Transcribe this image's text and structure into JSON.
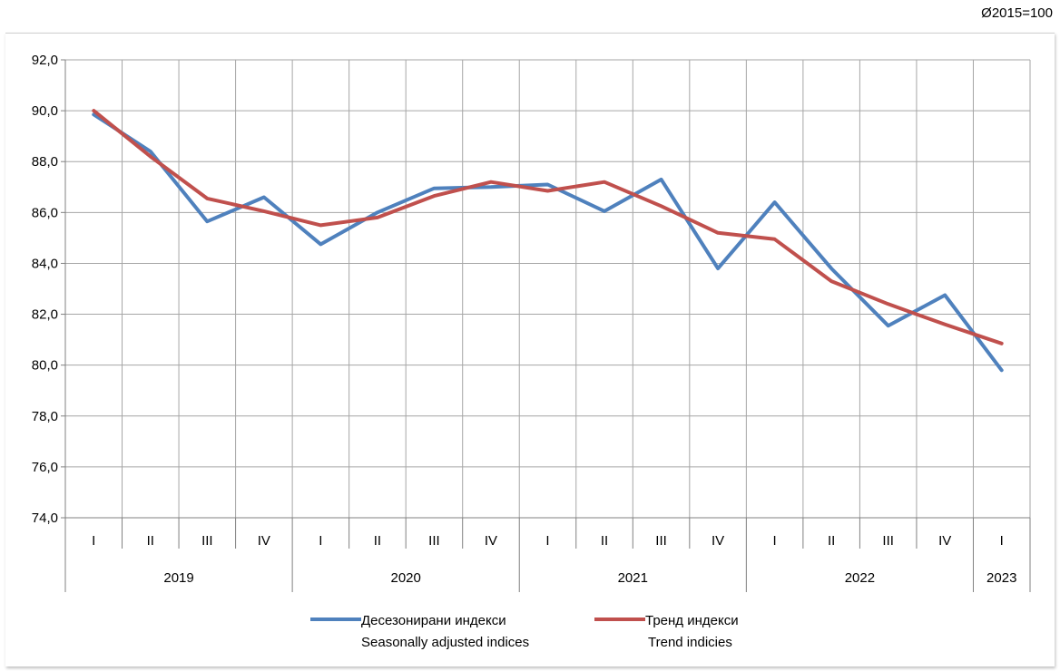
{
  "base_note": "Ø2015=100",
  "chart_data": {
    "type": "line",
    "title": "",
    "ylim": [
      74.0,
      92.0
    ],
    "y_ticks": [
      "74,0",
      "76,0",
      "78,0",
      "80,0",
      "82,0",
      "84,0",
      "86,0",
      "88,0",
      "90,0",
      "92,0"
    ],
    "y_tick_values": [
      74,
      76,
      78,
      80,
      82,
      84,
      86,
      88,
      90,
      92
    ],
    "grid": true,
    "legend_position": "bottom",
    "quarters": [
      "I",
      "II",
      "III",
      "IV",
      "I",
      "II",
      "III",
      "IV",
      "I",
      "II",
      "III",
      "IV",
      "I",
      "II",
      "III",
      "IV",
      "I"
    ],
    "years": [
      {
        "label": "2019",
        "quarters": 4
      },
      {
        "label": "2020",
        "quarters": 4
      },
      {
        "label": "2021",
        "quarters": 4
      },
      {
        "label": "2022",
        "quarters": 4
      },
      {
        "label": "2023",
        "quarters": 1
      }
    ],
    "series": [
      {
        "name_line1": "Десезонирани индекси",
        "name_line2": "Seasonally adjusted indices",
        "color": "#4f81bd",
        "values": [
          89.85,
          88.4,
          85.65,
          86.6,
          84.75,
          86.0,
          86.95,
          87.0,
          87.1,
          86.05,
          87.3,
          83.8,
          86.4,
          83.8,
          81.55,
          82.75,
          79.8
        ]
      },
      {
        "name_line1": "Тренд индекси",
        "name_line2": "Trend indicies",
        "color": "#c0504d",
        "values": [
          90.0,
          88.2,
          86.55,
          86.05,
          85.5,
          85.8,
          86.65,
          87.2,
          86.85,
          87.2,
          86.25,
          85.2,
          84.95,
          83.3,
          82.4,
          81.6,
          80.85
        ]
      }
    ]
  }
}
